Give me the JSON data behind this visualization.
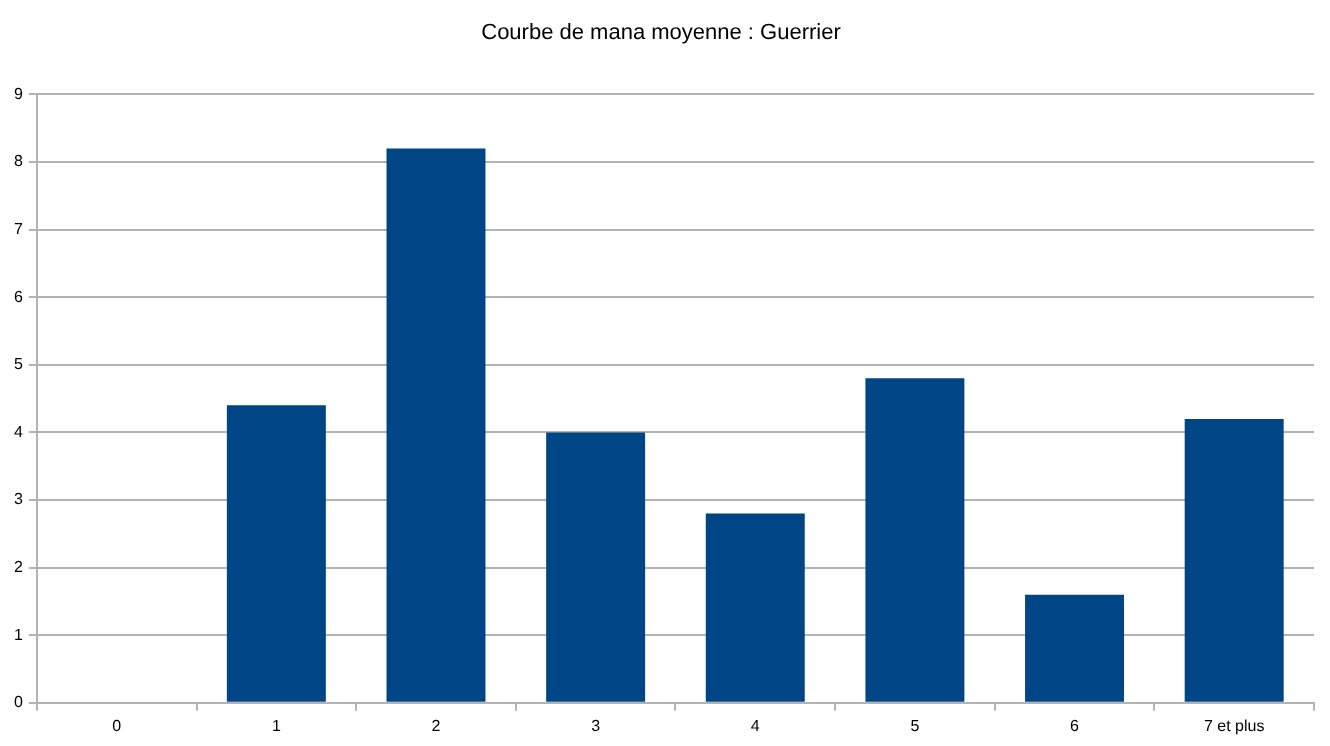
{
  "chart_data": {
    "type": "bar",
    "title": "Courbe de mana moyenne : Guerrier",
    "categories": [
      "0",
      "1",
      "2",
      "3",
      "4",
      "5",
      "6",
      "7 et plus"
    ],
    "values": [
      0,
      4.4,
      8.2,
      4.0,
      2.8,
      4.8,
      1.6,
      4.2
    ],
    "color": "#004586",
    "ylim": [
      0,
      9
    ],
    "yticks": [
      0,
      1,
      2,
      3,
      4,
      5,
      6,
      7,
      8,
      9
    ],
    "grid": "y"
  }
}
